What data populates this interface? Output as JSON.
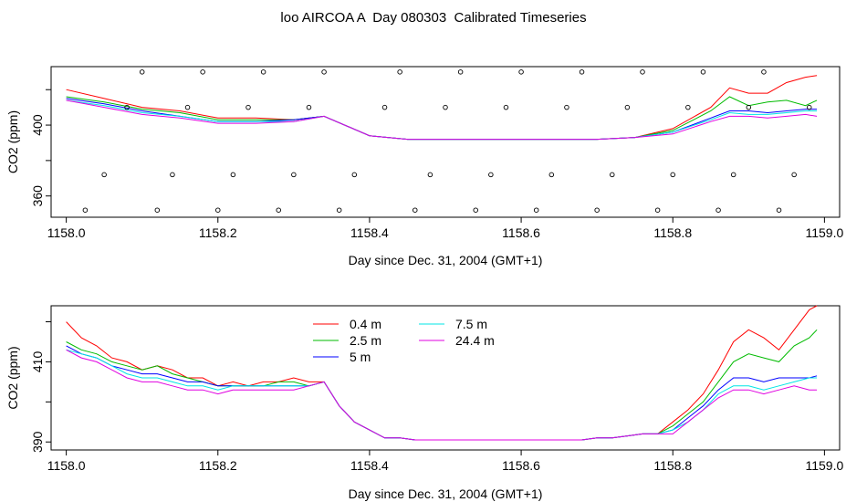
{
  "title": "loo AIRCOA A  Day 080303  Calibrated Timeseries",
  "colors": {
    "0.4 m": "#ff0000",
    "2.5 m": "#00bb00",
    "5 m": "#0000ff",
    "7.5 m": "#00e5e5",
    "24.4 m": "#e000e0",
    "axis": "#000000",
    "points": "#000000"
  },
  "chart_data": [
    {
      "type": "line",
      "xlabel": "Day since Dec. 31, 2004 (GMT+1)",
      "ylabel": "CO2 (ppm)",
      "xlim": [
        1157.98,
        1159.02
      ],
      "ylim": [
        348,
        433
      ],
      "xticks": [
        1158.0,
        1158.2,
        1158.4,
        1158.6,
        1158.8,
        1159.0
      ],
      "xtick_labels": [
        "1158.0",
        "1158.2",
        "1158.4",
        "1158.6",
        "1158.8",
        "1159.0"
      ],
      "yticks": [
        360,
        380,
        400,
        420
      ],
      "ytick_labels": [
        "360",
        "",
        "400",
        ""
      ],
      "legend": null,
      "series": [
        {
          "key": "0.4 m",
          "x": [
            1158.0,
            1158.05,
            1158.1,
            1158.15,
            1158.2,
            1158.25,
            1158.3,
            1158.34,
            1158.4,
            1158.45,
            1158.5,
            1158.55,
            1158.6,
            1158.65,
            1158.7,
            1158.75,
            1158.8,
            1158.85,
            1158.875,
            1158.9,
            1158.925,
            1158.95,
            1158.975,
            1158.99
          ],
          "y": [
            420,
            415,
            410,
            408,
            404,
            404,
            403,
            405,
            394,
            392,
            392,
            392,
            392,
            392,
            392,
            393,
            398,
            410,
            421,
            418,
            418,
            424,
            427,
            428
          ]
        },
        {
          "key": "2.5 m",
          "x": [
            1158.0,
            1158.05,
            1158.1,
            1158.15,
            1158.2,
            1158.25,
            1158.3,
            1158.34,
            1158.4,
            1158.45,
            1158.5,
            1158.55,
            1158.6,
            1158.65,
            1158.7,
            1158.75,
            1158.8,
            1158.85,
            1158.875,
            1158.9,
            1158.925,
            1158.95,
            1158.975,
            1158.99
          ],
          "y": [
            416,
            413,
            409,
            407,
            403,
            403,
            403,
            405,
            394,
            392,
            392,
            392,
            392,
            392,
            392,
            393,
            397,
            408,
            416,
            411,
            413,
            414,
            411,
            414
          ]
        },
        {
          "key": "5 m",
          "x": [
            1158.0,
            1158.05,
            1158.1,
            1158.15,
            1158.2,
            1158.25,
            1158.3,
            1158.34,
            1158.4,
            1158.45,
            1158.5,
            1158.55,
            1158.6,
            1158.65,
            1158.7,
            1158.75,
            1158.8,
            1158.85,
            1158.875,
            1158.9,
            1158.925,
            1158.95,
            1158.975,
            1158.99
          ],
          "y": [
            415,
            412,
            408,
            405,
            402,
            402,
            403,
            405,
            394,
            392,
            392,
            392,
            392,
            392,
            392,
            393,
            396,
            404,
            408,
            408,
            407,
            408,
            409,
            409
          ]
        },
        {
          "key": "7.5 m",
          "x": [
            1158.0,
            1158.05,
            1158.1,
            1158.15,
            1158.2,
            1158.25,
            1158.3,
            1158.34,
            1158.4,
            1158.45,
            1158.5,
            1158.55,
            1158.6,
            1158.65,
            1158.7,
            1158.75,
            1158.8,
            1158.85,
            1158.875,
            1158.9,
            1158.925,
            1158.95,
            1158.975,
            1158.99
          ],
          "y": [
            414,
            411,
            407,
            405,
            402,
            402,
            402,
            405,
            394,
            392,
            392,
            392,
            392,
            392,
            392,
            393,
            396,
            403,
            407,
            406,
            406,
            407,
            408,
            408
          ]
        },
        {
          "key": "24.4 m",
          "x": [
            1158.0,
            1158.05,
            1158.1,
            1158.15,
            1158.2,
            1158.25,
            1158.3,
            1158.34,
            1158.4,
            1158.45,
            1158.5,
            1158.55,
            1158.6,
            1158.65,
            1158.7,
            1158.75,
            1158.8,
            1158.85,
            1158.875,
            1158.9,
            1158.925,
            1158.95,
            1158.975,
            1158.99
          ],
          "y": [
            414,
            410,
            406,
            404,
            401,
            401,
            402,
            405,
            394,
            392,
            392,
            392,
            392,
            392,
            392,
            393,
            395,
            402,
            405,
            405,
            404,
            405,
            406,
            405
          ]
        }
      ],
      "points": {
        "x": [
          1158.025,
          1158.05,
          1158.08,
          1158.1,
          1158.12,
          1158.14,
          1158.16,
          1158.18,
          1158.2,
          1158.22,
          1158.24,
          1158.26,
          1158.28,
          1158.3,
          1158.32,
          1158.34,
          1158.36,
          1158.38,
          1158.42,
          1158.44,
          1158.46,
          1158.48,
          1158.5,
          1158.52,
          1158.54,
          1158.56,
          1158.58,
          1158.6,
          1158.62,
          1158.64,
          1158.66,
          1158.68,
          1158.7,
          1158.72,
          1158.74,
          1158.76,
          1158.78,
          1158.8,
          1158.82,
          1158.84,
          1158.86,
          1158.88,
          1158.9,
          1158.92,
          1158.94,
          1158.96,
          1158.98
        ],
        "y": [
          352,
          372,
          410,
          430,
          352,
          372,
          410,
          430,
          352,
          372,
          410,
          430,
          352,
          372,
          410,
          430,
          352,
          372,
          410,
          430,
          352,
          372,
          410,
          430,
          352,
          372,
          410,
          430,
          352,
          372,
          410,
          430,
          352,
          372,
          410,
          430,
          352,
          372,
          410,
          430,
          352,
          372,
          410,
          430,
          352,
          372,
          410
        ]
      }
    },
    {
      "type": "line",
      "xlabel": "Day since Dec. 31, 2004 (GMT+1)",
      "ylabel": "CO2 (ppm)",
      "xlim": [
        1157.98,
        1159.02
      ],
      "ylim": [
        388,
        424
      ],
      "xticks": [
        1158.0,
        1158.2,
        1158.4,
        1158.6,
        1158.8,
        1159.0
      ],
      "xtick_labels": [
        "1158.0",
        "1158.2",
        "1158.4",
        "1158.6",
        "1158.8",
        "1159.0"
      ],
      "yticks": [
        390,
        400,
        410,
        420
      ],
      "ytick_labels": [
        "390",
        "",
        "410",
        ""
      ],
      "legend": "top-center",
      "legend_entries": [
        "0.4 m",
        "2.5 m",
        "5 m",
        "7.5 m",
        "24.4 m"
      ],
      "series": [
        {
          "key": "0.4 m",
          "x": [
            1158.0,
            1158.02,
            1158.04,
            1158.06,
            1158.08,
            1158.1,
            1158.12,
            1158.14,
            1158.16,
            1158.18,
            1158.2,
            1158.22,
            1158.24,
            1158.26,
            1158.28,
            1158.3,
            1158.32,
            1158.34,
            1158.36,
            1158.38,
            1158.4,
            1158.42,
            1158.44,
            1158.46,
            1158.48,
            1158.5,
            1158.52,
            1158.54,
            1158.56,
            1158.58,
            1158.6,
            1158.62,
            1158.64,
            1158.66,
            1158.68,
            1158.7,
            1158.72,
            1158.74,
            1158.76,
            1158.78,
            1158.8,
            1158.82,
            1158.84,
            1158.86,
            1158.88,
            1158.9,
            1158.92,
            1158.94,
            1158.96,
            1158.98,
            1158.99
          ],
          "y": [
            420,
            416,
            414,
            411,
            410,
            408,
            409,
            408,
            406,
            406,
            404,
            405,
            404,
            405,
            405,
            406,
            405,
            405,
            399,
            395,
            393,
            391,
            391,
            390.5,
            390.5,
            390.5,
            390.5,
            390.5,
            390.5,
            390.5,
            390.5,
            390.5,
            390.5,
            390.5,
            390.5,
            391,
            391,
            391.5,
            392,
            392,
            395,
            398,
            402,
            408,
            415,
            418,
            416,
            413,
            418,
            423,
            424
          ]
        },
        {
          "key": "2.5 m",
          "x": [
            1158.0,
            1158.02,
            1158.04,
            1158.06,
            1158.08,
            1158.1,
            1158.12,
            1158.14,
            1158.16,
            1158.18,
            1158.2,
            1158.22,
            1158.24,
            1158.26,
            1158.28,
            1158.3,
            1158.32,
            1158.34,
            1158.36,
            1158.38,
            1158.4,
            1158.42,
            1158.44,
            1158.46,
            1158.48,
            1158.5,
            1158.52,
            1158.54,
            1158.56,
            1158.58,
            1158.6,
            1158.62,
            1158.64,
            1158.66,
            1158.68,
            1158.7,
            1158.72,
            1158.74,
            1158.76,
            1158.78,
            1158.8,
            1158.82,
            1158.84,
            1158.86,
            1158.88,
            1158.9,
            1158.92,
            1158.94,
            1158.96,
            1158.98,
            1158.99
          ],
          "y": [
            415,
            413,
            412,
            410,
            409,
            408,
            409,
            407,
            406,
            405,
            404,
            404,
            404,
            404,
            405,
            405,
            404,
            405,
            399,
            395,
            393,
            391,
            391,
            390.5,
            390.5,
            390.5,
            390.5,
            390.5,
            390.5,
            390.5,
            390.5,
            390.5,
            390.5,
            390.5,
            390.5,
            391,
            391,
            391.5,
            392,
            392,
            394,
            397,
            400,
            405,
            410,
            412,
            411,
            410,
            414,
            416,
            418
          ]
        },
        {
          "key": "5 m",
          "x": [
            1158.0,
            1158.02,
            1158.04,
            1158.06,
            1158.08,
            1158.1,
            1158.12,
            1158.14,
            1158.16,
            1158.18,
            1158.2,
            1158.22,
            1158.24,
            1158.26,
            1158.28,
            1158.3,
            1158.32,
            1158.34,
            1158.36,
            1158.38,
            1158.4,
            1158.42,
            1158.44,
            1158.46,
            1158.48,
            1158.5,
            1158.52,
            1158.54,
            1158.56,
            1158.58,
            1158.6,
            1158.62,
            1158.64,
            1158.66,
            1158.68,
            1158.7,
            1158.72,
            1158.74,
            1158.76,
            1158.78,
            1158.8,
            1158.82,
            1158.84,
            1158.86,
            1158.88,
            1158.9,
            1158.92,
            1158.94,
            1158.96,
            1158.98,
            1158.99
          ],
          "y": [
            414,
            412,
            411,
            409,
            408,
            407,
            407,
            406,
            405,
            405,
            404,
            404,
            404,
            404,
            404,
            404,
            404,
            405,
            399,
            395,
            393,
            391,
            391,
            390.5,
            390.5,
            390.5,
            390.5,
            390.5,
            390.5,
            390.5,
            390.5,
            390.5,
            390.5,
            390.5,
            390.5,
            391,
            391,
            391.5,
            392,
            392,
            393,
            396,
            399,
            403,
            406,
            406,
            405,
            406,
            406,
            406,
            406.5
          ]
        },
        {
          "key": "7.5 m",
          "x": [
            1158.0,
            1158.02,
            1158.04,
            1158.06,
            1158.08,
            1158.1,
            1158.12,
            1158.14,
            1158.16,
            1158.18,
            1158.2,
            1158.22,
            1158.24,
            1158.26,
            1158.28,
            1158.3,
            1158.32,
            1158.34,
            1158.36,
            1158.38,
            1158.4,
            1158.42,
            1158.44,
            1158.46,
            1158.48,
            1158.5,
            1158.52,
            1158.54,
            1158.56,
            1158.58,
            1158.6,
            1158.62,
            1158.64,
            1158.66,
            1158.68,
            1158.7,
            1158.72,
            1158.74,
            1158.76,
            1158.78,
            1158.8,
            1158.82,
            1158.84,
            1158.86,
            1158.88,
            1158.9,
            1158.92,
            1158.94,
            1158.96,
            1158.98,
            1158.99
          ],
          "y": [
            413,
            412,
            411,
            409,
            407,
            406,
            406,
            405,
            404,
            404,
            403,
            404,
            404,
            404,
            404,
            404,
            404,
            405,
            399,
            395,
            393,
            391,
            391,
            390.5,
            390.5,
            390.5,
            390.5,
            390.5,
            390.5,
            390.5,
            390.5,
            390.5,
            390.5,
            390.5,
            390.5,
            391,
            391,
            391.5,
            392,
            392,
            393,
            395,
            398,
            402,
            404,
            404,
            403,
            404,
            405,
            406,
            406
          ]
        },
        {
          "key": "24.4 m",
          "x": [
            1158.0,
            1158.02,
            1158.04,
            1158.06,
            1158.08,
            1158.1,
            1158.12,
            1158.14,
            1158.16,
            1158.18,
            1158.2,
            1158.22,
            1158.24,
            1158.26,
            1158.28,
            1158.3,
            1158.32,
            1158.34,
            1158.36,
            1158.38,
            1158.4,
            1158.42,
            1158.44,
            1158.46,
            1158.48,
            1158.5,
            1158.52,
            1158.54,
            1158.56,
            1158.58,
            1158.6,
            1158.62,
            1158.64,
            1158.66,
            1158.68,
            1158.7,
            1158.72,
            1158.74,
            1158.76,
            1158.78,
            1158.8,
            1158.82,
            1158.84,
            1158.86,
            1158.88,
            1158.9,
            1158.92,
            1158.94,
            1158.96,
            1158.98,
            1158.99
          ],
          "y": [
            413,
            411,
            410,
            408,
            406,
            405,
            405,
            404,
            403,
            403,
            402,
            403,
            403,
            403,
            403,
            403,
            404,
            405,
            399,
            395,
            393,
            391,
            391,
            390.5,
            390.5,
            390.5,
            390.5,
            390.5,
            390.5,
            390.5,
            390.5,
            390.5,
            390.5,
            390.5,
            390.5,
            391,
            391,
            391.5,
            392,
            392,
            392,
            395,
            398,
            401,
            403,
            403,
            402,
            403,
            404,
            403,
            403
          ]
        }
      ]
    }
  ]
}
